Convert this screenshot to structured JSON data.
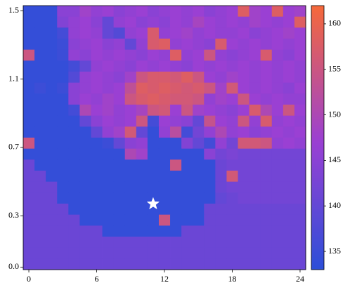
{
  "chart_data": {
    "type": "heatmap",
    "xlim": [
      -0.5,
      24.5
    ],
    "ylim": [
      -0.015,
      1.53
    ],
    "xticks": [
      0,
      6,
      12,
      18,
      24
    ],
    "yticks": [
      {
        "value": 0,
        "label": "0.0"
      },
      0.3,
      0.7,
      1.1,
      1.5
    ],
    "colorbar_lim": [
      133,
      162
    ],
    "colorbar_ticks": [
      135,
      140,
      145,
      150,
      155,
      160
    ],
    "colormap": [
      [
        133,
        "#2c4fd8"
      ],
      [
        147,
        "#9a40d3"
      ],
      [
        162,
        "#f5693a"
      ]
    ],
    "marker": {
      "x": 11,
      "y": 0.37,
      "color": "#ffffff"
    },
    "z": [
      [
        134,
        134,
        134,
        145,
        145,
        148,
        146,
        147,
        145,
        146,
        147,
        145,
        146,
        147,
        146,
        147,
        145,
        146,
        147,
        158,
        148,
        147,
        158,
        147,
        148
      ],
      [
        134,
        134,
        134,
        144,
        146,
        147,
        145,
        140,
        146,
        147,
        145,
        146,
        145,
        147,
        146,
        149,
        147,
        146,
        147,
        146,
        148,
        147,
        146,
        147,
        158
      ],
      [
        134,
        134,
        134,
        136,
        146,
        147,
        146,
        140,
        138,
        146,
        147,
        157,
        146,
        147,
        148,
        146,
        147,
        146,
        146,
        147,
        145,
        146,
        147,
        148,
        147
      ],
      [
        134,
        134,
        134,
        135,
        145,
        146,
        147,
        145,
        146,
        140,
        146,
        157,
        158,
        146,
        147,
        146,
        145,
        157,
        147,
        146,
        147,
        146,
        147,
        146,
        147
      ],
      [
        155,
        134,
        134,
        135,
        146,
        145,
        147,
        146,
        147,
        146,
        145,
        147,
        146,
        158,
        146,
        147,
        155,
        146,
        145,
        146,
        147,
        157,
        146,
        145,
        147
      ],
      [
        134,
        134,
        134,
        134,
        136,
        140,
        146,
        147,
        146,
        145,
        147,
        146,
        147,
        146,
        145,
        147,
        146,
        147,
        146,
        147,
        146,
        147,
        146,
        147,
        146
      ],
      [
        134,
        134,
        134,
        134,
        138,
        146,
        147,
        146,
        145,
        148,
        155,
        157,
        157,
        156,
        158,
        155,
        147,
        146,
        148,
        147,
        146,
        147,
        146,
        147,
        146
      ],
      [
        134,
        135,
        134,
        135,
        145,
        146,
        147,
        146,
        147,
        153,
        158,
        157,
        158,
        157,
        156,
        157,
        155,
        148,
        156,
        147,
        146,
        147,
        146,
        145,
        147
      ],
      [
        134,
        134,
        134,
        134,
        145,
        147,
        146,
        148,
        147,
        155,
        157,
        158,
        157,
        156,
        156,
        155,
        146,
        148,
        147,
        155,
        147,
        146,
        147,
        146,
        146
      ],
      [
        134,
        134,
        134,
        134,
        136,
        150,
        147,
        148,
        146,
        147,
        149,
        155,
        156,
        147,
        155,
        148,
        147,
        146,
        145,
        147,
        157,
        150,
        147,
        155,
        147
      ],
      [
        134,
        134,
        134,
        134,
        134,
        140,
        145,
        147,
        146,
        147,
        155,
        136,
        147,
        146,
        145,
        140,
        154,
        147,
        146,
        155,
        146,
        157,
        146,
        147,
        146
      ],
      [
        134,
        134,
        134,
        134,
        134,
        134,
        140,
        146,
        148,
        156,
        140,
        134,
        146,
        152,
        136,
        142,
        146,
        150,
        146,
        147,
        145,
        146,
        147,
        146,
        147
      ],
      [
        155,
        134,
        134,
        134,
        134,
        134,
        134,
        135,
        140,
        145,
        146,
        134,
        134,
        134,
        144,
        140,
        136,
        146,
        142,
        156,
        156,
        155,
        146,
        147,
        146
      ],
      [
        134,
        134,
        134,
        134,
        134,
        134,
        134,
        134,
        134,
        150,
        148,
        134,
        134,
        134,
        134,
        134,
        145,
        142,
        143,
        142,
        142,
        142,
        142,
        142,
        142
      ],
      [
        141,
        134,
        134,
        134,
        134,
        134,
        134,
        134,
        134,
        134,
        134,
        134,
        134,
        155,
        134,
        134,
        134,
        141,
        142,
        142,
        142,
        142,
        142,
        142,
        142
      ],
      [
        141,
        141,
        134,
        134,
        134,
        134,
        134,
        134,
        134,
        134,
        134,
        134,
        134,
        134,
        134,
        134,
        134,
        141,
        156,
        142,
        142,
        142,
        142,
        142,
        142
      ],
      [
        141,
        141,
        141,
        134,
        134,
        134,
        134,
        134,
        134,
        134,
        134,
        134,
        134,
        134,
        134,
        134,
        134,
        141,
        142,
        142,
        142,
        142,
        142,
        142,
        142
      ],
      [
        141,
        141,
        141,
        134,
        134,
        134,
        134,
        134,
        134,
        134,
        134,
        134,
        134,
        134,
        134,
        134,
        134,
        140,
        141,
        142,
        142,
        142,
        142,
        142,
        142
      ],
      [
        141,
        141,
        141,
        141,
        134,
        134,
        134,
        134,
        134,
        134,
        134,
        134,
        134,
        134,
        134,
        134,
        141,
        141,
        141,
        141,
        141,
        141,
        141,
        141,
        141
      ],
      [
        141,
        141,
        141,
        141,
        141,
        134,
        134,
        134,
        134,
        134,
        134,
        134,
        155,
        134,
        134,
        134,
        141,
        141,
        141,
        141,
        141,
        141,
        141,
        141,
        141
      ],
      [
        141,
        141,
        141,
        141,
        141,
        141,
        141,
        134,
        134,
        134,
        134,
        134,
        134,
        134,
        141,
        141,
        141,
        141,
        141,
        141,
        141,
        141,
        141,
        141,
        141
      ],
      [
        141,
        141,
        141,
        141,
        141,
        141,
        141,
        141,
        141,
        141,
        141,
        141,
        141,
        141,
        141,
        141,
        141,
        141,
        141,
        141,
        141,
        141,
        141,
        141,
        141
      ],
      [
        141,
        141,
        141,
        141,
        141,
        141,
        141,
        141,
        141,
        141,
        141,
        141,
        141,
        141,
        141,
        141,
        141,
        141,
        141,
        141,
        141,
        141,
        141,
        141,
        141
      ],
      [
        141,
        141,
        141,
        141,
        141,
        141,
        141,
        141,
        141,
        141,
        141,
        141,
        141,
        141,
        141,
        141,
        141,
        141,
        141,
        141,
        141,
        141,
        141,
        141,
        141
      ]
    ]
  }
}
